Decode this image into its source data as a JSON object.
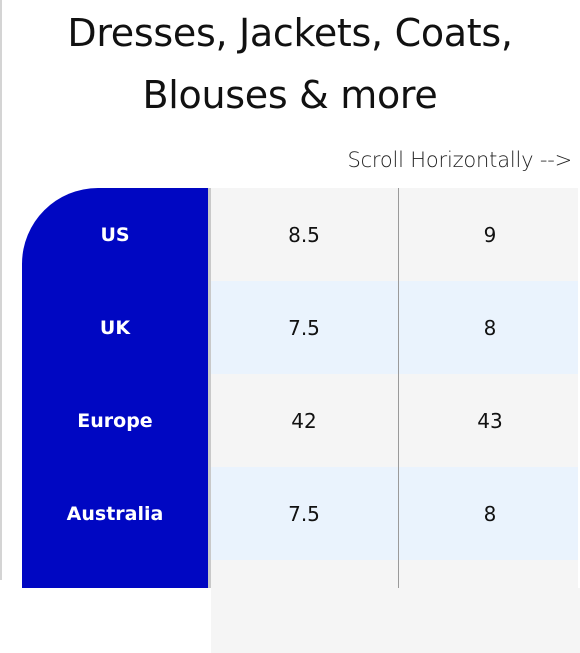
{
  "title": {
    "line1": "Dresses, Jackets, Coats,",
    "line2": "Blouses & more"
  },
  "scroll_hint": "Scroll Horizontally -->",
  "colors": {
    "header_blue": "#0007c2",
    "row_light": "#f5f5f5",
    "row_blue": "#eaf3fd"
  },
  "table": {
    "rows": [
      {
        "label": "US",
        "values": [
          "8.5",
          "9"
        ]
      },
      {
        "label": "UK",
        "values": [
          "7.5",
          "8"
        ]
      },
      {
        "label": "Europe",
        "values": [
          "42",
          "43"
        ]
      },
      {
        "label": "Australia",
        "values": [
          "7.5",
          "8"
        ]
      }
    ]
  }
}
